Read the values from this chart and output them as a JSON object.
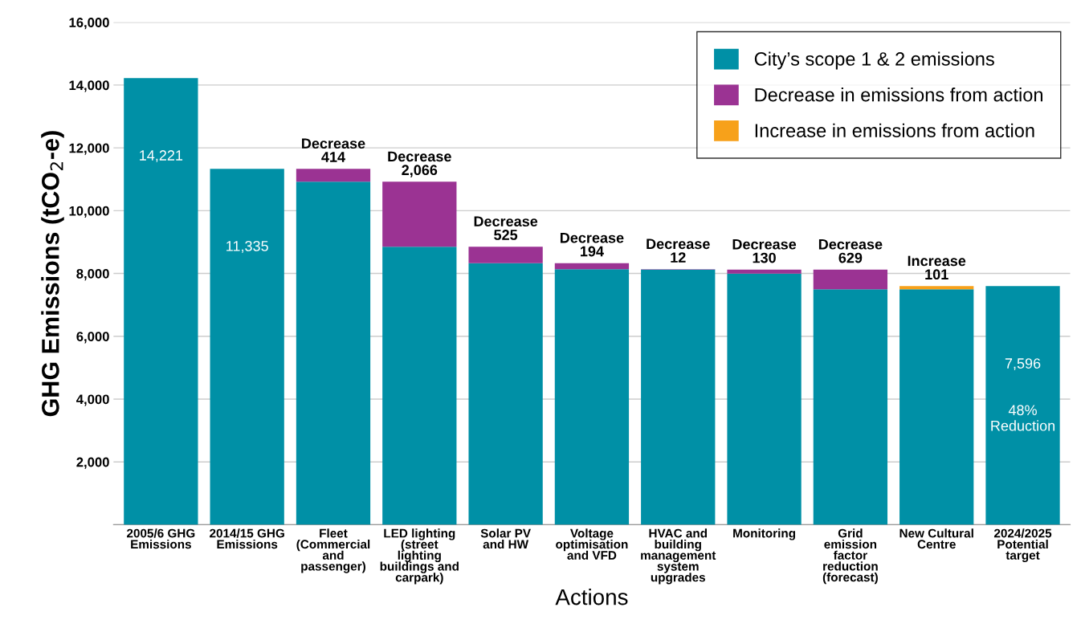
{
  "chart_data": {
    "type": "bar",
    "stacked": true,
    "categories": [
      "2005/6 GHG\nEmissions",
      "2014/15 GHG\nEmissions",
      "Fleet\n(Commercial\nand\npassenger)",
      "LED lighting\n(street\nlighting\nbuildings and\ncarpark)",
      "Solar PV\nand HW",
      "Voltage\noptimisation\nand VFD",
      "HVAC and\nbuilding\nmanagement\nsystem\nupgrades",
      "Monitoring",
      "Grid\nemission\nfactor\nreduction\n(forecast)",
      "New Cultural\nCentre",
      "2024/2025\nPotential\ntarget"
    ],
    "series": [
      {
        "name": "City’s scope 1 & 2 emissions",
        "color": "#0090a6",
        "values": [
          14221,
          11335,
          10921,
          8855,
          8330,
          8136,
          8124,
          7994,
          7495,
          7495,
          7596
        ],
        "value_labels": [
          "14,221",
          "11,335",
          null,
          null,
          null,
          null,
          null,
          null,
          null,
          null,
          "7,596"
        ]
      },
      {
        "name": "Decrease in emissions from action",
        "color": "#9b3393",
        "values": [
          null,
          null,
          414,
          2066,
          525,
          194,
          12,
          130,
          629,
          null,
          null
        ],
        "value_labels": [
          null,
          null,
          "Decrease\n414",
          "Decrease\n2,066",
          "Decrease\n525",
          "Decrease\n194",
          "Decrease\n12",
          "Decrease\n130",
          "Decrease\n629",
          null,
          null
        ]
      },
      {
        "name": "Increase in emissions from action",
        "color": "#f7a11a",
        "values": [
          null,
          null,
          null,
          null,
          null,
          null,
          null,
          null,
          null,
          101,
          null
        ],
        "value_labels": [
          null,
          null,
          null,
          null,
          null,
          null,
          null,
          null,
          null,
          "Increase\n101",
          null
        ]
      }
    ],
    "xlabel": "Actions",
    "ylabel": "GHG Emissions (tCO$_{2}$-e)",
    "ylim": [
      0,
      16000
    ],
    "yticks": [
      {
        "value": 0,
        "label": null
      },
      {
        "value": 2000,
        "label": "2,000"
      },
      {
        "value": 4000,
        "label": "4,000"
      },
      {
        "value": 6000,
        "label": "6,000"
      },
      {
        "value": 8000,
        "label": "8,000"
      },
      {
        "value": 10000,
        "label": "10,000"
      },
      {
        "value": 12000,
        "label": "12,000"
      },
      {
        "value": 14000,
        "label": "14,000"
      },
      {
        "value": 16000,
        "label": "16,000"
      }
    ],
    "annotations": [
      "48%\nReduction"
    ],
    "grid": "y",
    "legend": "top right"
  }
}
